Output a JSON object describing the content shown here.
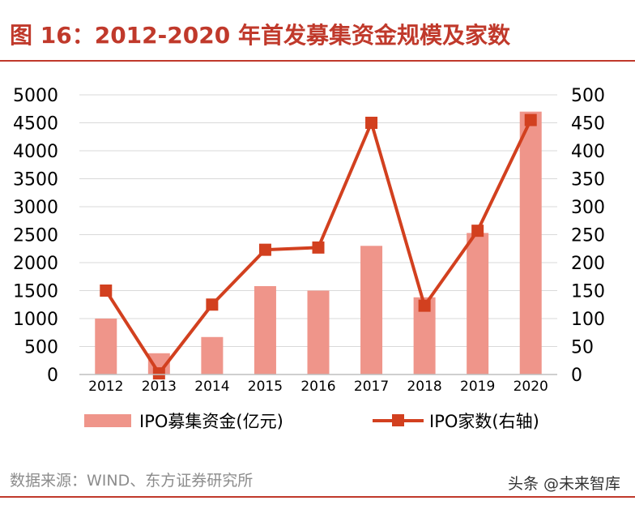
{
  "header": {
    "title": "图 16：2012-2020 年首发募集资金规模及家数"
  },
  "footer": {
    "source": "数据来源：WIND、东方证券研究所",
    "watermark": "头条 @未来智库"
  },
  "colors": {
    "brand": "#c0392b",
    "bar": "#ef958a",
    "line": "#d2401f",
    "marker": "#d2401f"
  },
  "chart_data": {
    "type": "bar",
    "title": "",
    "categories": [
      "2012",
      "2013",
      "2014",
      "2015",
      "2016",
      "2017",
      "2018",
      "2019",
      "2020"
    ],
    "series": [
      {
        "name": "IPO募集资金(亿元)",
        "type": "bar",
        "axis": "left",
        "values": [
          1000,
          380,
          670,
          1580,
          1500,
          2300,
          1380,
          2530,
          4700
        ]
      },
      {
        "name": "IPO家数(右轴)",
        "type": "line",
        "axis": "right",
        "values": [
          150,
          2,
          125,
          223,
          227,
          450,
          123,
          257,
          455
        ]
      }
    ],
    "ylim_left": [
      0,
      5000
    ],
    "ylim_right": [
      0,
      500
    ],
    "yticks_left": [
      "0",
      "500",
      "1000",
      "1500",
      "2000",
      "2500",
      "3000",
      "3500",
      "4000",
      "4500",
      "5000"
    ],
    "yticks_right": [
      "0",
      "50",
      "100",
      "150",
      "200",
      "250",
      "300",
      "350",
      "400",
      "450",
      "500"
    ],
    "grid": true,
    "legend_position": "bottom"
  }
}
